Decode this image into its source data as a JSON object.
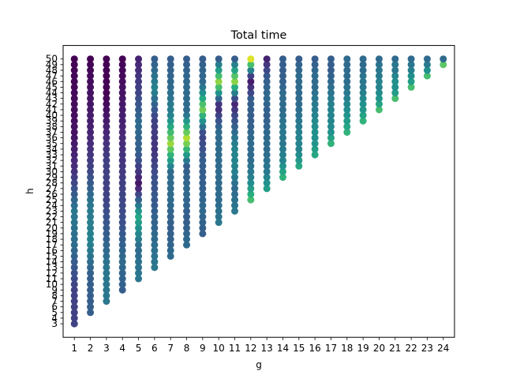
{
  "chart_data": {
    "type": "scatter",
    "title": "Total time",
    "xlabel": "g",
    "ylabel": "h",
    "x_ticks": [
      1,
      2,
      3,
      4,
      5,
      6,
      7,
      8,
      9,
      10,
      11,
      12,
      13,
      14,
      15,
      16,
      17,
      18,
      19,
      20,
      21,
      22,
      23,
      24
    ],
    "y_ticks": [
      3,
      4,
      5,
      6,
      7,
      8,
      9,
      10,
      11,
      12,
      13,
      14,
      15,
      16,
      17,
      18,
      19,
      20,
      21,
      22,
      23,
      24,
      25,
      26,
      27,
      28,
      29,
      30,
      31,
      32,
      33,
      34,
      35,
      36,
      37,
      38,
      39,
      40,
      41,
      42,
      43,
      44,
      45,
      46,
      47,
      48,
      49,
      50
    ],
    "xlim": [
      0.3,
      24.7
    ],
    "ylim": [
      0.6,
      52.4
    ],
    "grid": false,
    "colormap": "viridis",
    "color_encoding": "relative total time",
    "point_sets": [
      {
        "g": 1,
        "h_min": 3,
        "h_max": 50
      },
      {
        "g": 2,
        "h_min": 5,
        "h_max": 50
      },
      {
        "g": 3,
        "h_min": 7,
        "h_max": 50
      },
      {
        "g": 4,
        "h_min": 9,
        "h_max": 50
      },
      {
        "g": 5,
        "h_min": 11,
        "h_max": 50
      },
      {
        "g": 6,
        "h_min": 13,
        "h_max": 50
      },
      {
        "g": 7,
        "h_min": 15,
        "h_max": 50
      },
      {
        "g": 8,
        "h_min": 17,
        "h_max": 50
      },
      {
        "g": 9,
        "h_min": 19,
        "h_max": 50
      },
      {
        "g": 10,
        "h_min": 21,
        "h_max": 50
      },
      {
        "g": 11,
        "h_min": 23,
        "h_max": 50
      },
      {
        "g": 12,
        "h_min": 25,
        "h_max": 50
      },
      {
        "g": 13,
        "h_min": 27,
        "h_max": 50
      },
      {
        "g": 14,
        "h_min": 29,
        "h_max": 50
      },
      {
        "g": 15,
        "h_min": 31,
        "h_max": 50
      },
      {
        "g": 16,
        "h_min": 33,
        "h_max": 50
      },
      {
        "g": 17,
        "h_min": 35,
        "h_max": 50
      },
      {
        "g": 18,
        "h_min": 37,
        "h_max": 50
      },
      {
        "g": 19,
        "h_min": 39,
        "h_max": 50
      },
      {
        "g": 20,
        "h_min": 41,
        "h_max": 50
      },
      {
        "g": 21,
        "h_min": 43,
        "h_max": 50
      },
      {
        "g": 22,
        "h_min": 45,
        "h_max": 50
      },
      {
        "g": 23,
        "h_min": 47,
        "h_max": 50
      },
      {
        "g": 24,
        "h_min": 49,
        "h_max": 50
      }
    ],
    "color_values_by_g": [
      [
        0.2,
        0.2,
        0.35,
        0.4,
        0.15,
        0.05,
        0.03,
        0.0
      ],
      [
        0.3,
        0.3,
        0.45,
        0.4,
        0.2,
        0.1,
        0.05,
        0.0
      ],
      [
        0.4,
        0.4,
        0.3,
        0.2,
        0.2,
        0.1,
        0.0,
        0.0
      ],
      [
        0.3,
        0.35,
        0.25,
        0.2,
        0.15,
        0.1,
        0.05,
        0.0
      ],
      [
        0.4,
        0.35,
        0.6,
        0.05,
        0.3,
        0.35,
        0.2,
        0.1
      ],
      [
        0.4,
        0.35,
        0.3,
        0.25,
        0.15,
        0.2,
        0.45,
        0.3
      ],
      [
        0.35,
        0.3,
        0.35,
        0.35,
        0.85,
        0.45,
        0.35,
        0.3
      ],
      [
        0.35,
        0.3,
        0.35,
        0.3,
        0.9,
        0.35,
        0.35,
        0.3
      ],
      [
        0.3,
        0.35,
        0.3,
        0.3,
        0.2,
        0.8,
        0.35,
        0.3
      ],
      [
        0.4,
        0.35,
        0.35,
        0.35,
        0.35,
        0.1,
        0.85,
        0.3
      ],
      [
        0.4,
        0.35,
        0.45,
        0.45,
        0.3,
        0.1,
        0.85,
        0.3
      ],
      [
        0.7,
        0.45,
        0.35,
        0.35,
        0.3,
        0.3,
        0.05,
        0.95
      ],
      [
        0.55,
        0.4,
        0.35,
        0.35,
        0.3,
        0.35,
        0.3,
        0.1
      ],
      [
        0.65,
        0.45,
        0.4,
        0.4,
        0.35,
        0.35,
        0.3,
        0.3
      ],
      [
        0.6,
        0.45,
        0.45,
        0.4,
        0.35,
        0.35,
        0.35,
        0.3
      ],
      [
        0.6,
        0.5,
        0.5,
        0.45,
        0.4,
        0.35,
        0.35,
        0.3
      ],
      [
        0.65,
        0.5,
        0.45,
        0.45,
        0.4,
        0.35,
        0.3,
        0.3
      ],
      [
        0.65,
        0.55,
        0.5,
        0.45,
        0.4,
        0.35,
        0.35,
        0.35
      ],
      [
        0.65,
        0.55,
        0.5,
        0.45,
        0.4,
        0.4,
        0.35,
        0.35
      ],
      [
        0.7,
        0.55,
        0.5,
        0.45,
        0.45,
        0.4,
        0.4,
        0.35
      ],
      [
        0.7,
        0.55,
        0.5,
        0.5,
        0.45,
        0.4,
        0.4,
        0.35
      ],
      [
        0.7,
        0.6,
        0.5,
        0.5,
        0.45,
        0.4,
        0.4,
        0.35
      ],
      [
        0.7,
        0.6,
        0.5,
        0.5,
        0.45,
        0.4,
        0.4,
        0.35
      ],
      [
        0.75,
        0.75,
        0.55,
        0.5,
        0.45,
        0.4,
        0.4,
        0.35
      ]
    ]
  }
}
